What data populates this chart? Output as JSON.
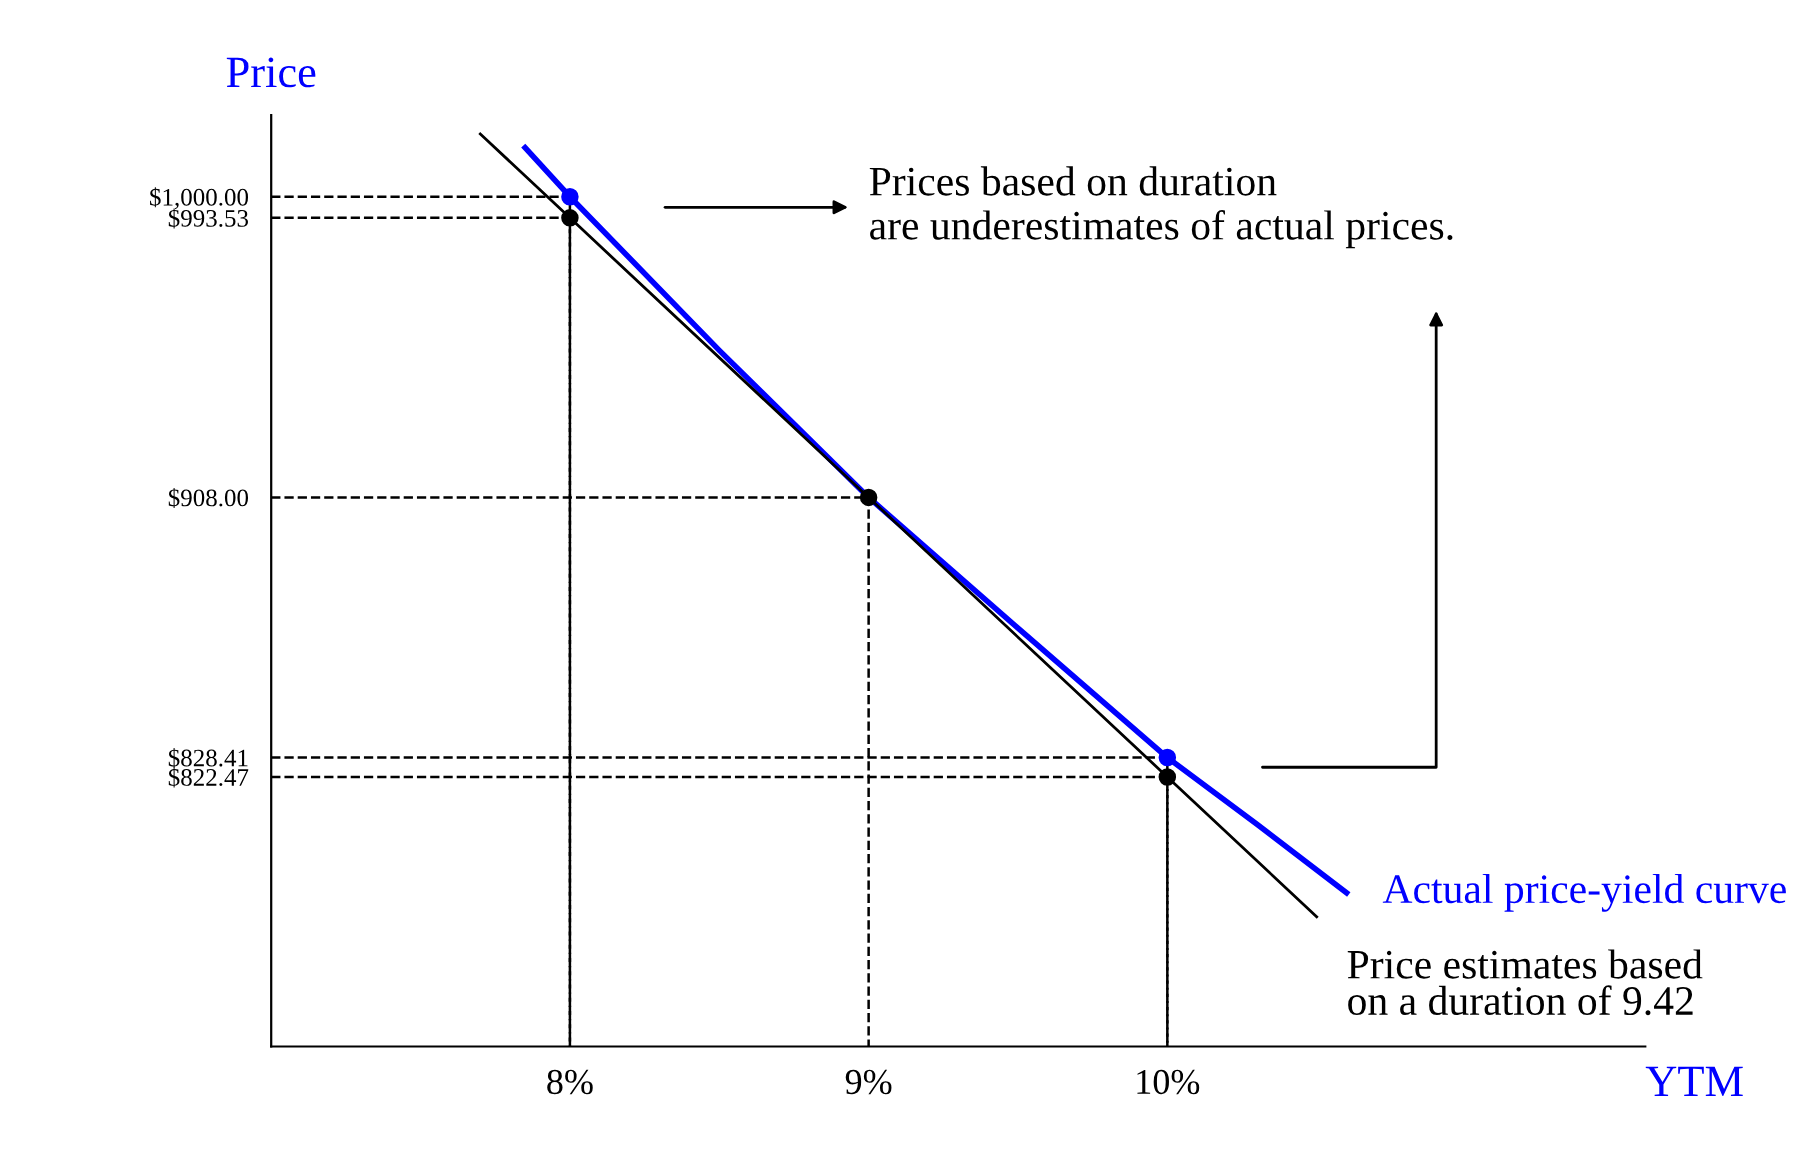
{
  "chart_data": {
    "type": "line",
    "xlabel": "YTM",
    "ylabel": "Price",
    "xlim": [
      7,
      11.6
    ],
    "ylim": [
      740,
      1025
    ],
    "xticks": [
      {
        "value": 8,
        "label": "8%"
      },
      {
        "value": 9,
        "label": "9%"
      },
      {
        "value": 10,
        "label": "10%"
      }
    ],
    "yticks": [
      {
        "value": 822.47,
        "label": "$822.47"
      },
      {
        "value": 828.41,
        "label": "$828.41"
      },
      {
        "value": 908,
        "label": "$908.00"
      },
      {
        "value": 993.53,
        "label": "$993.53"
      },
      {
        "value": 1000,
        "label": "$1,000.00"
      }
    ],
    "marker": "none",
    "series": [
      {
        "name": "Actual price-yield curve",
        "color": "#0000ff",
        "x": [
          7.85,
          8,
          8.5,
          9,
          9.5,
          10,
          10.3,
          10.6
        ],
        "values": [
          1015,
          1000,
          953,
          908,
          868,
          828.41,
          808,
          787
        ]
      },
      {
        "name": "Price estimates based\non a duration of 9.42",
        "color": "#000000",
        "x": [
          7.7,
          8,
          9,
          10,
          10.5
        ],
        "values": [
          1019.2,
          993.53,
          908,
          822.47,
          779.7
        ]
      },
      {
        "line_style": "dashed",
        "color": "#000000",
        "x": [
          7,
          8,
          8
        ],
        "values": [
          1000,
          1000,
          740
        ]
      },
      {
        "line_style": "dashed",
        "color": "#000000",
        "x": [
          7,
          8,
          8
        ],
        "values": [
          993.53,
          993.53,
          740
        ]
      },
      {
        "line_style": "dashed",
        "color": "#000000",
        "x": [
          7,
          9,
          9
        ],
        "values": [
          908,
          908,
          740
        ]
      },
      {
        "line_style": "dashed",
        "color": "#000000",
        "x": [
          7,
          10,
          10
        ],
        "values": [
          828.41,
          828.41,
          740
        ]
      },
      {
        "line_style": "dashed",
        "color": "#000000",
        "x": [
          7,
          10,
          10
        ],
        "values": [
          822.47,
          822.47,
          740
        ]
      },
      {
        "type": "scatter",
        "marker": "circle",
        "color": "#0000ff",
        "x": [
          8,
          10
        ],
        "values": [
          1000,
          828.41
        ]
      },
      {
        "type": "scatter",
        "marker": "circle",
        "color": "#000000",
        "x": [
          8,
          9,
          10
        ],
        "values": [
          993.53,
          908,
          822.47
        ]
      }
    ],
    "annotations": [
      "Prices based on duration\nare underestimates of actual prices."
    ]
  }
}
